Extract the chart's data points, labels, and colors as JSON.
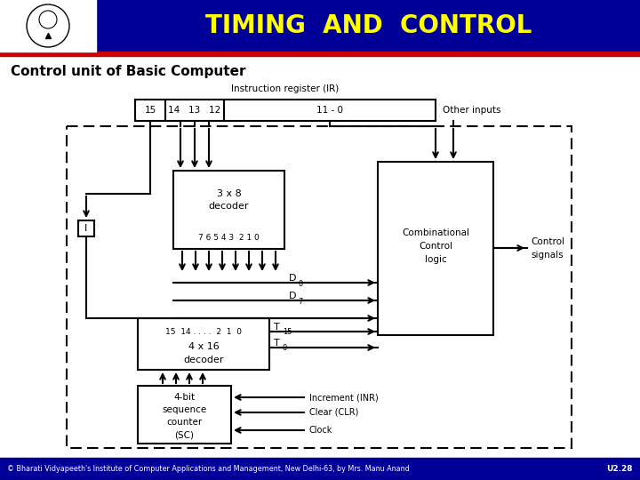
{
  "title": "TIMING  AND  CONTROL",
  "title_color": "#FFFF00",
  "header_bg": "#000099",
  "red_line_color": "#CC0000",
  "subtitle": "Control unit of Basic Computer",
  "footer_text": "© Bharati Vidyapeeth's Institute of Computer Applications and Management, New Delhi-63, by Mrs. Manu Anand",
  "footer_right": "U2.28",
  "footer_bg": "#000099",
  "footer_color": "#FFFFFF",
  "bg_color": "#FFFFFF"
}
